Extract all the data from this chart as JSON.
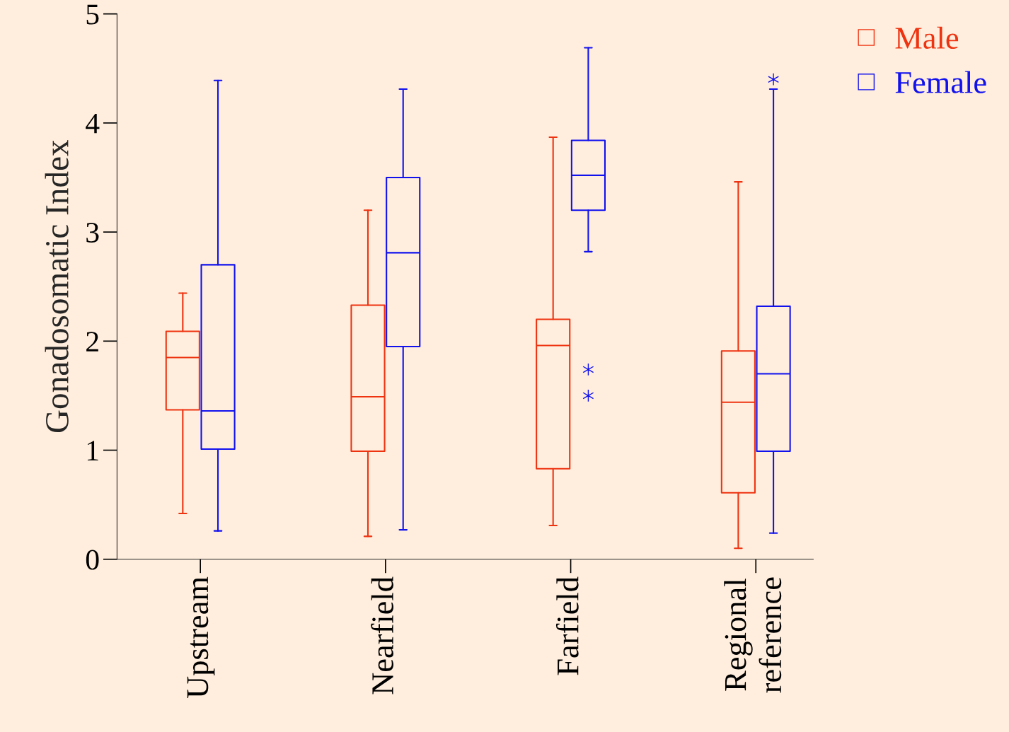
{
  "chart_data": {
    "type": "box",
    "ylabel": "Gonadosomatic Index",
    "categories": [
      "Upstream",
      "Nearfield",
      "Farfield",
      "Regional\nreference"
    ],
    "ylim": [
      0,
      5
    ],
    "yticks": [
      0,
      1,
      2,
      3,
      4,
      5
    ],
    "grid": false,
    "legend": "top right",
    "series": [
      {
        "name": "Male",
        "color": "#ee3311",
        "boxes": [
          {
            "low": 0.42,
            "q1": 1.37,
            "median": 1.85,
            "q3": 2.09,
            "high": 2.44
          },
          {
            "low": 0.21,
            "q1": 0.99,
            "median": 1.49,
            "q3": 2.33,
            "high": 3.2
          },
          {
            "low": 0.31,
            "q1": 0.83,
            "median": 1.96,
            "q3": 2.2,
            "high": 3.87
          },
          {
            "low": 0.1,
            "q1": 0.61,
            "median": 1.44,
            "q3": 1.91,
            "high": 3.46
          }
        ]
      },
      {
        "name": "Female",
        "color": "#1111ee",
        "boxes": [
          {
            "low": 0.26,
            "q1": 1.01,
            "median": 1.36,
            "q3": 2.7,
            "high": 4.39
          },
          {
            "low": 0.27,
            "q1": 1.95,
            "median": 2.81,
            "q3": 3.5,
            "high": 4.31
          },
          {
            "low": 2.82,
            "q1": 3.2,
            "median": 3.52,
            "q3": 3.84,
            "high": 4.69,
            "outliers": [
              1.74,
              1.5
            ]
          },
          {
            "low": 0.24,
            "q1": 0.99,
            "median": 1.7,
            "q3": 2.32,
            "high": 4.31,
            "outliers": [
              4.4
            ]
          }
        ]
      }
    ]
  }
}
